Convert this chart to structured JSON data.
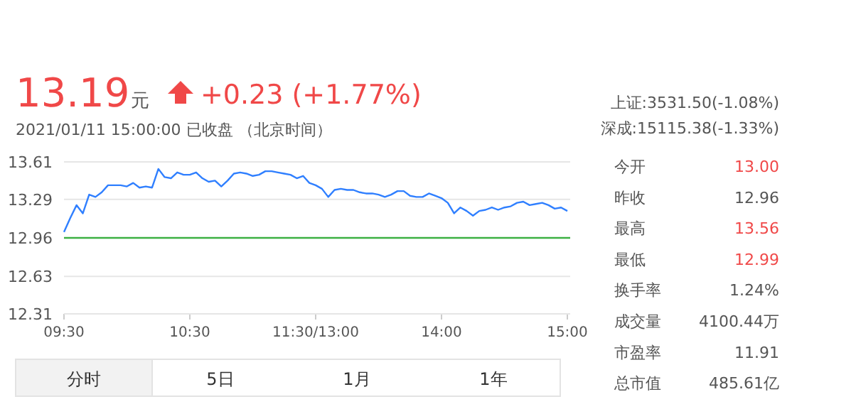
{
  "chart_data": {
    "type": "line",
    "title": "13.19",
    "subtitle": "2021/01/11 15:00:00  已收盘 （北京时间）",
    "annotations": [
      "元",
      "+0.23 (+1.77%)",
      "上证:3531.50(-1.08%)",
      "深成:15115.38(-1.33%)",
      "今开",
      "13.00",
      "昨收",
      "12.96",
      "最高",
      "13.56",
      "最低",
      "12.99",
      "换手率",
      "1.24%",
      "成交量",
      "4100.44万",
      "市盈率",
      "11.91",
      "总市值",
      "485.61亿",
      "分时",
      "5日",
      "1月",
      "1年"
    ],
    "categories": [
      "09:30",
      null,
      null,
      null,
      null,
      null,
      null,
      null,
      null,
      null,
      null,
      null,
      null,
      null,
      null,
      null,
      null,
      null,
      null,
      null,
      "10:30",
      null,
      null,
      null,
      null,
      null,
      null,
      null,
      null,
      null,
      null,
      null,
      null,
      null,
      null,
      null,
      null,
      null,
      null,
      null,
      "11:30/13:00",
      null,
      null,
      null,
      null,
      null,
      null,
      null,
      null,
      null,
      null,
      null,
      null,
      null,
      null,
      null,
      null,
      null,
      null,
      null,
      "14:00",
      null,
      null,
      null,
      null,
      null,
      null,
      null,
      null,
      null,
      null,
      null,
      null,
      null,
      null,
      null,
      null,
      null,
      null,
      null,
      "15:00"
    ],
    "series": [
      {
        "color": "#2f7fff",
        "values": [
          13.01,
          13.13,
          13.24,
          13.17,
          13.33,
          13.31,
          13.35,
          13.41,
          13.41,
          13.41,
          13.4,
          13.43,
          13.39,
          13.4,
          13.39,
          13.55,
          13.48,
          13.47,
          13.52,
          13.5,
          13.5,
          13.52,
          13.47,
          13.44,
          13.45,
          13.4,
          13.45,
          13.51,
          13.52,
          13.51,
          13.49,
          13.5,
          13.53,
          13.53,
          13.52,
          13.51,
          13.5,
          13.47,
          13.49,
          13.43,
          13.41,
          13.38,
          13.31,
          13.37,
          13.38,
          13.37,
          13.37,
          13.35,
          13.34,
          13.34,
          13.33,
          13.31,
          13.33,
          13.36,
          13.36,
          13.32,
          13.31,
          13.31,
          13.34,
          13.32,
          13.3,
          13.26,
          13.17,
          13.22,
          13.19,
          13.15,
          13.19,
          13.2,
          13.22,
          13.2,
          13.22,
          13.23,
          13.26,
          13.27,
          13.24,
          13.25,
          13.26,
          13.24,
          13.21,
          13.22,
          13.19
        ]
      }
    ],
    "ref_lines": [
      {
        "axis": "y",
        "value": 12.96,
        "color": "#3cb043"
      }
    ],
    "ylim": [
      12.31,
      13.61
    ],
    "yticks": [
      12.31,
      12.63,
      12.96,
      13.29,
      13.61
    ],
    "grid": "y",
    "line_style": "solid"
  }
}
